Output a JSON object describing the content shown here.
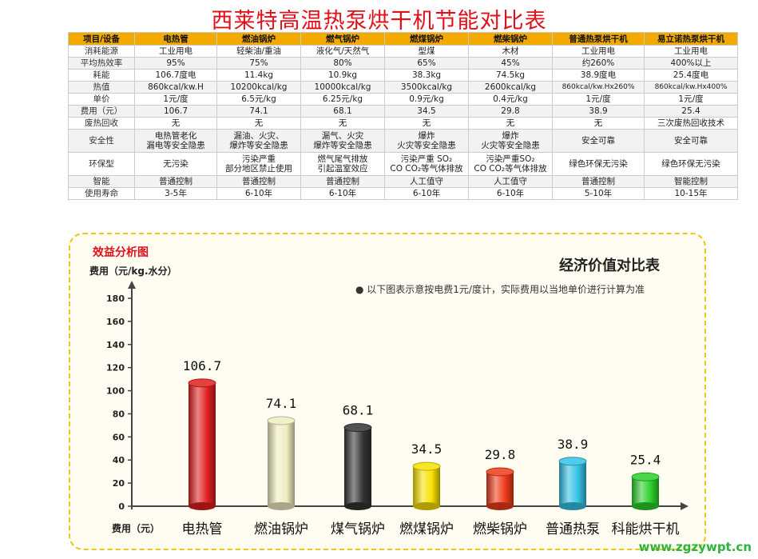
{
  "page_title": "西莱特高温热泵烘干机节能对比表",
  "table": {
    "headers": [
      "项目/设备",
      "电热管",
      "燃油锅炉",
      "燃气锅炉",
      "燃煤锅炉",
      "燃柴锅炉",
      "普通热泵烘干机",
      "易立诺热泵烘干机"
    ],
    "rows": [
      [
        "消耗能源",
        "工业用电",
        "轻柴油/重油",
        "液化气/天然气",
        "型煤",
        "木材",
        "工业用电",
        "工业用电"
      ],
      [
        "平均热效率",
        "95%",
        "75%",
        "80%",
        "65%",
        "45%",
        "约260%",
        "400%以上"
      ],
      [
        "耗能",
        "106.7度电",
        "11.4kg",
        "10.9kg",
        "38.3kg",
        "74.5kg",
        "38.9度电",
        "25.4度电"
      ],
      [
        "热值",
        "860kcal/kw.H",
        "10200kcal/kg",
        "10000kcal/kg",
        "3500kcal/kg",
        "2600kcal/kg",
        "860kcal/kw.Hx260%",
        "860kcal/kw.Hx400%"
      ],
      [
        "单价",
        "1元/度",
        "6.5元/kg",
        "6.25元/kg",
        "0.9元/kg",
        "0.4元/kg",
        "1元/度",
        "1元/度"
      ],
      [
        "费用（元）",
        "106.7",
        "74.1",
        "68.1",
        "34.5",
        "29.8",
        "38.9",
        "25.4"
      ],
      [
        "废热回收",
        "无",
        "无",
        "无",
        "无",
        "无",
        "无",
        "三次废热回收技术"
      ],
      [
        "安全性",
        "电热管老化\n漏电等安全隐患",
        "漏油、火灾、\n爆炸等安全隐患",
        "漏气、火灾\n爆炸等安全隐患",
        "爆炸\n火灾等安全隐患",
        "爆炸\n火灾等安全隐患",
        "安全可靠",
        "安全可靠"
      ],
      [
        "环保型",
        "无污染",
        "污染严重\n部分地区禁止使用",
        "燃气尾气排放\n引起温室效应",
        "污染严重 SO₂\nCO CO₂等气体排放",
        "污染严重SO₂\nCO CO₂等气体排放",
        "绿色环保无污染",
        "绿色环保无污染"
      ],
      [
        "智能",
        "普通控制",
        "普通控制",
        "普通控制",
        "人工值守",
        "人工值守",
        "普通控制",
        "智能控制"
      ],
      [
        "使用寿命",
        "3-5年",
        "6-10年",
        "6-10年",
        "6-10年",
        "6-10年",
        "5-10年",
        "10-15年"
      ]
    ]
  },
  "panel": {
    "analysis_title": "效益分析图",
    "unit_label": "费用（元/kg.水分）",
    "compare_title": "经济价值对比表",
    "note": "● 以下图表示意按电费1元/度计，实际费用以当地单价进行计算为准",
    "x_axis_label": "费用（元）"
  },
  "chart_data": {
    "type": "bar",
    "title": "效益分析图",
    "ylabel": "费用（元/kg.水分）",
    "xlabel": "费用（元）",
    "ylim": [
      0,
      180
    ],
    "yticks": [
      0,
      20,
      40,
      60,
      80,
      100,
      120,
      140,
      160,
      180
    ],
    "categories": [
      "电热管",
      "燃油锅炉",
      "煤气锅炉",
      "燃煤锅炉",
      "燃柴锅炉",
      "普通热泵",
      "科能烘干机"
    ],
    "values": [
      106.7,
      74.1,
      68.1,
      34.5,
      29.8,
      38.9,
      25.4
    ],
    "value_labels": [
      "106.7",
      "74.1",
      "68.1",
      "34.5",
      "29.8",
      "38.9",
      "25.4"
    ],
    "colors": [
      "#e02020",
      "#f0edc0",
      "#333333",
      "#f7e000",
      "#ee3a1a",
      "#33c2e6",
      "#2bd02b"
    ],
    "grid": false,
    "legend": "none"
  },
  "watermark": "www.zgzywpt.cn"
}
